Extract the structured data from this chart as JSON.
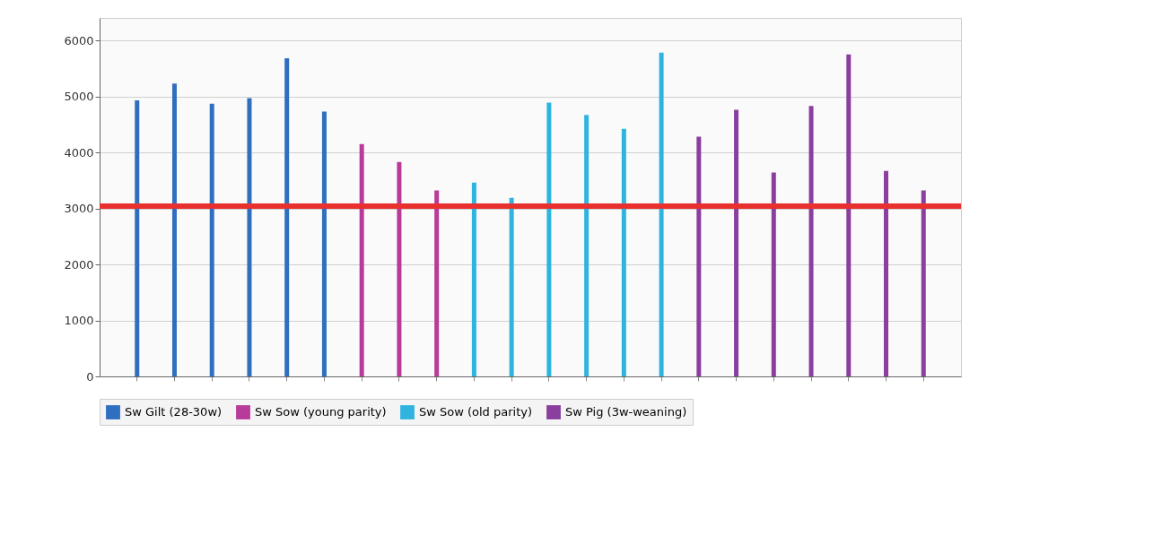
{
  "chart_data": {
    "type": "bar",
    "categories": [
      null,
      null,
      null,
      null,
      null,
      null,
      null,
      null,
      null,
      null,
      null,
      null,
      null,
      null,
      null,
      null,
      null,
      null,
      null,
      null,
      null,
      null
    ],
    "series": [
      {
        "name": "Sw Gilt (28-30w)",
        "color": "#2f6fbf",
        "values": [
          4930,
          5230,
          4870,
          4970,
          5680,
          4730,
          null,
          null,
          null,
          null,
          null,
          null,
          null,
          null,
          null,
          null,
          null,
          null,
          null,
          null,
          null,
          null
        ]
      },
      {
        "name": "Sw Sow (young parity)",
        "color": "#b83a9a",
        "values": [
          null,
          null,
          null,
          null,
          null,
          null,
          4150,
          3830,
          3320,
          null,
          null,
          null,
          null,
          null,
          null,
          null,
          null,
          null,
          null,
          null,
          null,
          null
        ]
      },
      {
        "name": "Sw Sow (old parity)",
        "color": "#2fb4e0",
        "values": [
          null,
          null,
          null,
          null,
          null,
          null,
          null,
          null,
          null,
          3460,
          3190,
          4890,
          4670,
          4420,
          5780,
          null,
          null,
          null,
          null,
          null,
          null,
          null
        ]
      },
      {
        "name": "Sw Pig (3w-weaning)",
        "color": "#8a3f9e",
        "values": [
          null,
          null,
          null,
          null,
          null,
          null,
          null,
          null,
          null,
          null,
          null,
          null,
          null,
          null,
          null,
          4280,
          4760,
          3640,
          4830,
          5750,
          3670,
          3320
        ]
      }
    ],
    "ylim": [
      0,
      6400
    ],
    "yticks": [
      0,
      1000,
      2000,
      3000,
      4000,
      5000,
      6000
    ],
    "grid": "y",
    "legend": "bottom",
    "ref_lines": [
      {
        "axis": "y",
        "value": 3040,
        "color": "#e8302e"
      }
    ]
  }
}
